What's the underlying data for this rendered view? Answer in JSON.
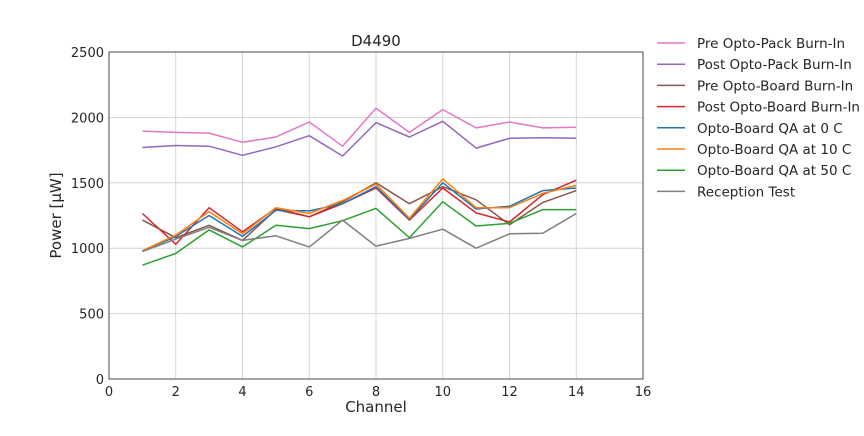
{
  "chart_data": {
    "type": "line",
    "title": "D4490",
    "xlabel": "Channel",
    "ylabel": "Power [μW]",
    "xlim": [
      0,
      16
    ],
    "ylim": [
      0,
      2500
    ],
    "x_ticks": [
      0,
      2,
      4,
      6,
      8,
      10,
      12,
      14,
      16
    ],
    "y_ticks": [
      0,
      500,
      1000,
      1500,
      2000,
      2500
    ],
    "grid": true,
    "legend_position": "outside-right",
    "x": [
      1,
      2,
      3,
      4,
      5,
      6,
      7,
      8,
      9,
      10,
      11,
      12,
      13,
      14
    ],
    "series": [
      {
        "name": "Pre Opto-Pack Burn-In",
        "color": "#e377c2",
        "values": [
          1895,
          1885,
          1880,
          1810,
          1850,
          1965,
          1780,
          2070,
          1885,
          2060,
          1920,
          1965,
          1920,
          1925
        ]
      },
      {
        "name": "Post Opto-Pack Burn-In",
        "color": "#9467bd",
        "values": [
          1770,
          1785,
          1780,
          1710,
          1775,
          1860,
          1705,
          1960,
          1850,
          1970,
          1765,
          1840,
          1845,
          1840
        ]
      },
      {
        "name": "Pre Opto-Board Burn-In",
        "color": "#8c564b",
        "values": [
          1215,
          1080,
          1175,
          1060,
          1295,
          1240,
          1355,
          1500,
          1340,
          1470,
          1370,
          1180,
          1350,
          1440
        ]
      },
      {
        "name": "Post Opto-Board Burn-In",
        "color": "#d62728",
        "values": [
          1265,
          1030,
          1310,
          1125,
          1305,
          1240,
          1340,
          1460,
          1215,
          1460,
          1270,
          1200,
          1410,
          1520
        ]
      },
      {
        "name": "Opto-Board QA at 0 C",
        "color": "#1f77b4",
        "values": [
          980,
          1090,
          1250,
          1090,
          1290,
          1285,
          1340,
          1470,
          1220,
          1500,
          1300,
          1320,
          1440,
          1460
        ]
      },
      {
        "name": "Opto-Board QA at 10 C",
        "color": "#ff7f0e",
        "values": [
          980,
          1100,
          1280,
          1110,
          1310,
          1265,
          1365,
          1490,
          1230,
          1530,
          1310,
          1310,
          1420,
          1480
        ]
      },
      {
        "name": "Opto-Board QA at 50 C",
        "color": "#2ca02c",
        "values": [
          870,
          960,
          1140,
          1010,
          1175,
          1150,
          1210,
          1305,
          1080,
          1355,
          1170,
          1190,
          1295,
          1295
        ]
      },
      {
        "name": "Reception Test",
        "color": "#7f7f7f",
        "values": [
          975,
          1070,
          1160,
          1060,
          1095,
          1010,
          1215,
          1015,
          1075,
          1145,
          1000,
          1110,
          1115,
          1265
        ]
      }
    ]
  }
}
